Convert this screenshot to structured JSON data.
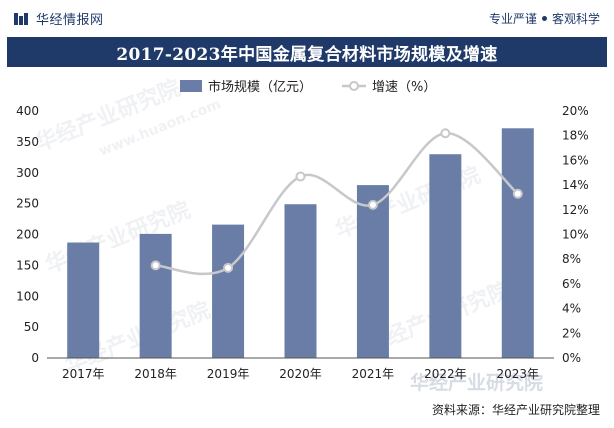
{
  "header": {
    "brand": "华经情报网",
    "slogan_left": "专业严谨",
    "slogan_right": "客观科学"
  },
  "title": "2017-2023年中国金属复合材料市场规模及增速",
  "source": "资料来源：华经产业研究院整理",
  "watermarks": [
    "华经产业研究院",
    "www.huaon.com",
    "华经产业研究院",
    "huaon"
  ],
  "colors": {
    "bar": "#6a7da6",
    "line": "#c7c8cc",
    "marker_fill": "#ffffff",
    "title_bg": "#1f3a68"
  },
  "chart_data": {
    "type": "bar",
    "categories": [
      "2017年",
      "2018年",
      "2019年",
      "2020年",
      "2021年",
      "2022年",
      "2023年"
    ],
    "series": [
      {
        "name": "市场规模（亿元）",
        "type": "bar",
        "axis": "left",
        "values": [
          187,
          201,
          216,
          249,
          280,
          330,
          372
        ]
      },
      {
        "name": "增速（%）",
        "type": "line",
        "axis": "right",
        "values": [
          null,
          7.5,
          7.3,
          14.7,
          12.4,
          18.2,
          13.3
        ]
      }
    ],
    "ylim": [
      0,
      400
    ],
    "y_ticks": [
      0,
      50,
      100,
      150,
      200,
      250,
      300,
      350,
      400
    ],
    "y2lim": [
      0,
      20
    ],
    "y2_ticks": [
      "0%",
      "2%",
      "4%",
      "6%",
      "8%",
      "10%",
      "12%",
      "14%",
      "16%",
      "18%",
      "20%"
    ],
    "legend_position": "top",
    "grid": false
  }
}
